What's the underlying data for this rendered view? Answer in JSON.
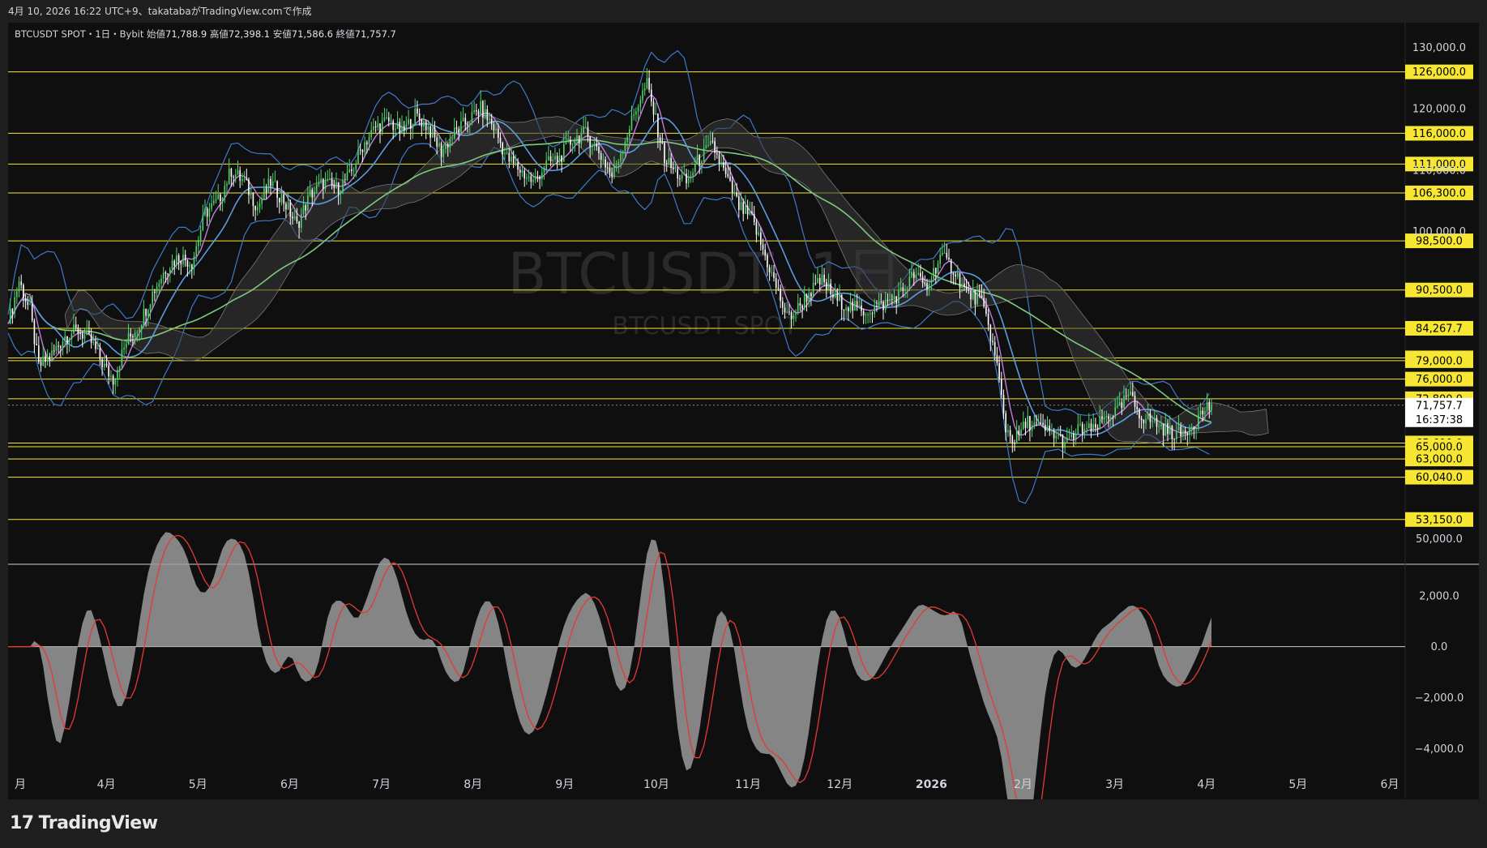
{
  "header": {
    "created_text": "4月 10, 2026 16:22 UTC+9、takatabaがTradingView.comで作成"
  },
  "legend": {
    "symbol": "BTCUSDT SPOT・1日・Bybit",
    "open_label": "始値",
    "open": "71,788.9",
    "high_label": "高値",
    "high": "72,398.1",
    "low_label": "安値",
    "low": "71,586.6",
    "close_label": "終値",
    "close": "71,757.7"
  },
  "watermark": {
    "main": "BTCUSDT, 1日",
    "sub": "BTCUSDT SPOT"
  },
  "brand": {
    "name": "TradingView"
  },
  "chart_data": {
    "type": "candlestick",
    "price_axis": {
      "ticks": [
        130000,
        120000,
        110000,
        100000,
        50000
      ],
      "tick_labels": [
        "130,000.0",
        "120,000.0",
        "110,000.0",
        "100,000.0",
        "50,000.0"
      ],
      "range": [
        46000,
        134000
      ]
    },
    "horizontal_levels": [
      126000,
      116000,
      111000,
      106300,
      98500,
      90500,
      84267.7,
      79450,
      79000,
      76000,
      72800,
      65600,
      65000,
      63000,
      60040,
      53150
    ],
    "level_labels": [
      "126,000.0",
      "116,000.0",
      "111,000.0",
      "106,300.0",
      "98,500.0",
      "90,500.0",
      "84,267.7",
      "79,450.0",
      "79,000.0",
      "76,000.0",
      "72,800.0",
      "65,600.0",
      "65,000.0",
      "63,000.0",
      "60,040.0",
      "53,150.0"
    ],
    "level_color": "#f7e733",
    "current_price": {
      "value": 71757.7,
      "label": "71,757.7",
      "countdown": "16:37:38"
    },
    "x_axis": {
      "labels": [
        "月",
        "4月",
        "5月",
        "6月",
        "7月",
        "8月",
        "9月",
        "10月",
        "11月",
        "12月",
        "2026",
        "2月",
        "3月",
        "4月",
        "5月",
        "6月"
      ]
    },
    "price_path": [
      [
        0,
        85000
      ],
      [
        5,
        92000
      ],
      [
        10,
        87000
      ],
      [
        14,
        78000
      ],
      [
        20,
        80000
      ],
      [
        26,
        83000
      ],
      [
        32,
        84000
      ],
      [
        38,
        82000
      ],
      [
        44,
        78000
      ],
      [
        48,
        76000
      ],
      [
        54,
        82000
      ],
      [
        60,
        85000
      ],
      [
        66,
        90000
      ],
      [
        72,
        94000
      ],
      [
        78,
        96000
      ],
      [
        84,
        95000
      ],
      [
        90,
        103000
      ],
      [
        96,
        105000
      ],
      [
        102,
        110000
      ],
      [
        108,
        108000
      ],
      [
        114,
        104000
      ],
      [
        120,
        108000
      ],
      [
        126,
        105000
      ],
      [
        132,
        101000
      ],
      [
        138,
        106000
      ],
      [
        144,
        108000
      ],
      [
        150,
        107000
      ],
      [
        156,
        109000
      ],
      [
        162,
        114000
      ],
      [
        168,
        117000
      ],
      [
        174,
        118000
      ],
      [
        180,
        116000
      ],
      [
        186,
        119000
      ],
      [
        192,
        117000
      ],
      [
        198,
        113000
      ],
      [
        204,
        116000
      ],
      [
        210,
        118000
      ],
      [
        216,
        120000
      ],
      [
        222,
        117000
      ],
      [
        228,
        112000
      ],
      [
        234,
        110000
      ],
      [
        240,
        108000
      ],
      [
        246,
        111000
      ],
      [
        252,
        112000
      ],
      [
        258,
        115000
      ],
      [
        264,
        116000
      ],
      [
        270,
        113000
      ],
      [
        276,
        109000
      ],
      [
        282,
        115000
      ],
      [
        288,
        121000
      ],
      [
        292,
        124000
      ],
      [
        296,
        118000
      ],
      [
        300,
        112000
      ],
      [
        304,
        110000
      ],
      [
        310,
        108000
      ],
      [
        316,
        112000
      ],
      [
        322,
        114000
      ],
      [
        328,
        109000
      ],
      [
        334,
        104000
      ],
      [
        340,
        102000
      ],
      [
        346,
        96000
      ],
      [
        352,
        90000
      ],
      [
        356,
        86000
      ],
      [
        360,
        87000
      ],
      [
        366,
        90000
      ],
      [
        372,
        92000
      ],
      [
        378,
        89000
      ],
      [
        384,
        88000
      ],
      [
        390,
        87000
      ],
      [
        396,
        87500
      ],
      [
        402,
        88500
      ],
      [
        408,
        90000
      ],
      [
        414,
        93000
      ],
      [
        420,
        91000
      ],
      [
        426,
        96000
      ],
      [
        432,
        94000
      ],
      [
        438,
        90000
      ],
      [
        444,
        89000
      ],
      [
        448,
        85000
      ],
      [
        452,
        78000
      ],
      [
        456,
        68000
      ],
      [
        460,
        66000
      ],
      [
        466,
        69000
      ],
      [
        472,
        68000
      ],
      [
        478,
        67000
      ],
      [
        484,
        65500
      ],
      [
        490,
        68000
      ],
      [
        496,
        67500
      ],
      [
        502,
        70000
      ],
      [
        508,
        71000
      ],
      [
        512,
        73500
      ],
      [
        518,
        70000
      ],
      [
        524,
        69000
      ],
      [
        530,
        67500
      ],
      [
        536,
        67000
      ],
      [
        542,
        69000
      ],
      [
        548,
        71500
      ],
      [
        550,
        71757.7
      ]
    ],
    "price_color_up": "#4fd36a",
    "price_color_down": "#ffffff",
    "oscillator": {
      "ticks": [
        2000,
        0,
        -2000,
        -4000
      ],
      "tick_labels": [
        "2,000.0",
        "0.0",
        "−2,000.0",
        "−4,000.0"
      ],
      "range": [
        -5000,
        3200
      ],
      "histogram_color": "#9a9a9a",
      "signal_color": "#e53935"
    }
  }
}
